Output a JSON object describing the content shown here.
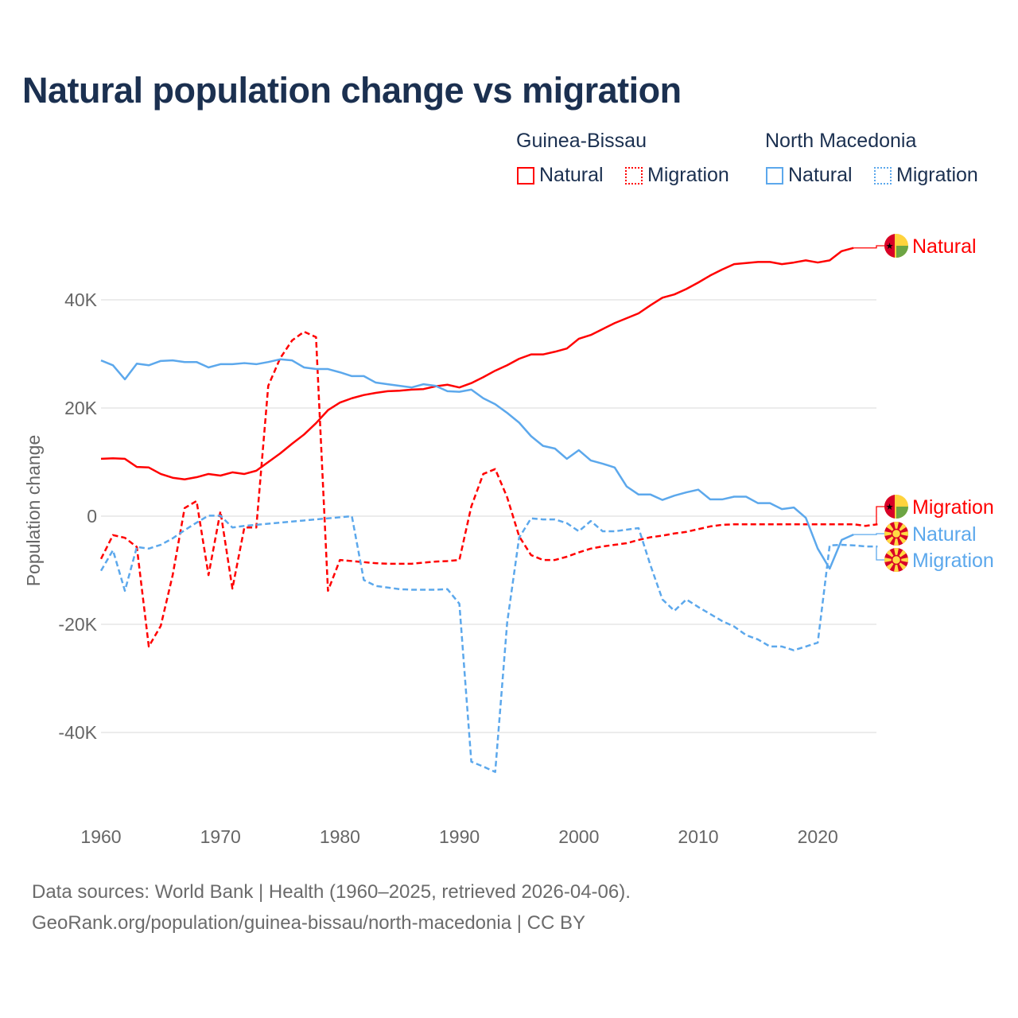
{
  "title": "Natural population change vs migration",
  "legend": {
    "groups": [
      {
        "name": "Guinea-Bissau",
        "items": [
          {
            "label": "Natural",
            "style": "solid"
          },
          {
            "label": "Migration",
            "style": "dotted"
          }
        ],
        "color": "#ff0000"
      },
      {
        "name": "North Macedonia",
        "items": [
          {
            "label": "Natural",
            "style": "solid"
          },
          {
            "label": "Migration",
            "style": "dotted"
          }
        ],
        "color": "#5ca8ec"
      }
    ]
  },
  "footer": {
    "line1": "Data sources: World Bank | Health (1960–2025, retrieved 2026-04-06).",
    "line2": "GeoRank.org/population/guinea-bissau/north-macedonia | CC BY"
  },
  "chart_data": {
    "type": "line",
    "title": "Natural population change vs migration",
    "xlabel": "",
    "ylabel": "Population change",
    "xlim": [
      1960,
      2025
    ],
    "ylim": [
      -50000,
      50000
    ],
    "xticks": [
      1960,
      1970,
      1980,
      1990,
      2000,
      2010,
      2020
    ],
    "yticks": [
      40000,
      20000,
      0,
      -20000,
      -40000
    ],
    "ytick_labels": [
      "40K",
      "20K",
      "0",
      "-20K",
      "-40K"
    ],
    "grid": true,
    "legend_position": "top-right",
    "series": [
      {
        "name": "Guinea-Bissau Natural",
        "end_label": "Natural",
        "country": "Guinea-Bissau",
        "color": "#ff0000",
        "dash": false,
        "start_year": 1960,
        "values": [
          10600,
          10700,
          10600,
          9100,
          9000,
          7800,
          7100,
          6800,
          7200,
          7800,
          7500,
          8100,
          7800,
          8400,
          10000,
          11600,
          13400,
          15100,
          17200,
          19600,
          21000,
          21800,
          22400,
          22800,
          23100,
          23200,
          23400,
          23500,
          24000,
          24300,
          23800,
          24600,
          25700,
          26900,
          27900,
          29100,
          29900,
          29900,
          30400,
          31000,
          32800,
          33500,
          34600,
          35700,
          36600,
          37500,
          39000,
          40400,
          41000,
          42000,
          43200,
          44500,
          45600,
          46600,
          46800,
          47000,
          47000,
          46600,
          46900,
          47300,
          46900,
          47300,
          49000,
          49600
        ]
      },
      {
        "name": "Guinea-Bissau Migration",
        "end_label": "Migration",
        "country": "Guinea-Bissau",
        "color": "#ff0000",
        "dash": true,
        "start_year": 1960,
        "values": [
          -7900,
          -3500,
          -4000,
          -5700,
          -24100,
          -20300,
          -10900,
          1500,
          2800,
          -10900,
          900,
          -13400,
          -2100,
          -2100,
          24100,
          29200,
          32500,
          34100,
          33100,
          -13800,
          -8100,
          -8300,
          -8500,
          -8700,
          -8800,
          -8800,
          -8800,
          -8600,
          -8400,
          -8300,
          -8100,
          1800,
          7800,
          8700,
          3500,
          -3700,
          -7200,
          -8100,
          -8100,
          -7500,
          -6700,
          -6000,
          -5600,
          -5300,
          -5000,
          -4400,
          -3900,
          -3600,
          -3200,
          -2900,
          -2400,
          -1900,
          -1600,
          -1500,
          -1500,
          -1500,
          -1500,
          -1500,
          -1500,
          -1500,
          -1500,
          -1500,
          -1500,
          -1500,
          -1800,
          -1500
        ]
      },
      {
        "name": "North Macedonia Natural",
        "end_label": "Natural",
        "country": "North Macedonia",
        "color": "#5ca8ec",
        "dash": false,
        "start_year": 1960,
        "values": [
          28800,
          27900,
          25300,
          28200,
          27900,
          28700,
          28800,
          28500,
          28500,
          27500,
          28100,
          28100,
          28300,
          28100,
          28500,
          29000,
          28800,
          27500,
          27200,
          27200,
          26600,
          25900,
          25900,
          24700,
          24400,
          24100,
          23800,
          24400,
          24100,
          23100,
          23000,
          23400,
          21800,
          20700,
          19100,
          17300,
          14800,
          13000,
          12500,
          10600,
          12200,
          10300,
          9700,
          9000,
          5500,
          4000,
          4000,
          3000,
          3800,
          4400,
          4900,
          3100,
          3100,
          3600,
          3600,
          2400,
          2400,
          1300,
          1600,
          -300,
          -6000,
          -9700,
          -4400,
          -3400
        ]
      },
      {
        "name": "North Macedonia Migration",
        "end_label": "Migration",
        "country": "North Macedonia",
        "color": "#5ca8ec",
        "dash": true,
        "start_year": 1960,
        "values": [
          -10100,
          -6300,
          -13800,
          -5700,
          -6000,
          -5300,
          -4100,
          -2600,
          -1200,
          100,
          100,
          -2100,
          -1800,
          -1600,
          -1400,
          -1200,
          -1000,
          -800,
          -600,
          -400,
          -200,
          0,
          -11800,
          -12900,
          -13200,
          -13500,
          -13600,
          -13600,
          -13600,
          -13500,
          -16200,
          -45400,
          -46300,
          -47300,
          -19700,
          -4000,
          -400,
          -600,
          -600,
          -1300,
          -2800,
          -900,
          -2800,
          -2800,
          -2500,
          -2200,
          -9100,
          -15400,
          -17500,
          -15400,
          -16800,
          -18100,
          -19400,
          -20400,
          -22000,
          -22800,
          -24100,
          -24100,
          -24800,
          -24100,
          -23400,
          -5400,
          -5300,
          -5400,
          -5600,
          -5600
        ]
      }
    ]
  }
}
